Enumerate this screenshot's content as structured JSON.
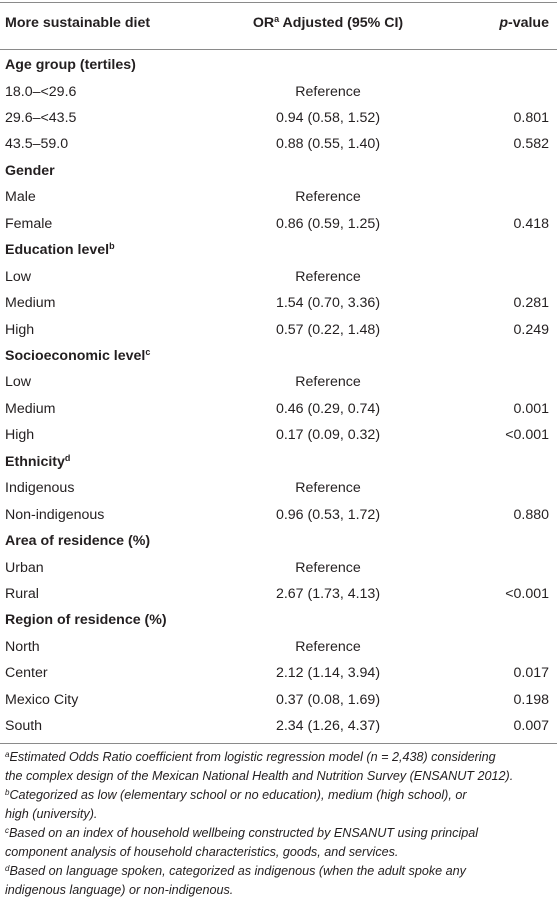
{
  "header": {
    "col1": "More sustainable diet",
    "col2_prefix": "OR",
    "col2_sup": "a",
    "col2_suffix": " Adjusted (95% CI)",
    "col3_italic": "p",
    "col3_rest": "-value"
  },
  "rows": [
    {
      "label": "Age group (tertiles)",
      "sup": "",
      "or": "",
      "p": "",
      "section": true
    },
    {
      "label": "18.0–<29.6",
      "or": "Reference",
      "p": ""
    },
    {
      "label": "29.6–<43.5",
      "or": "0.94 (0.58, 1.52)",
      "p": "0.801"
    },
    {
      "label": "43.5–59.0",
      "or": "0.88 (0.55, 1.40)",
      "p": "0.582"
    },
    {
      "label": "Gender",
      "sup": "",
      "or": "",
      "p": "",
      "section": true
    },
    {
      "label": "Male",
      "or": "Reference",
      "p": ""
    },
    {
      "label": "Female",
      "or": "0.86 (0.59, 1.25)",
      "p": "0.418"
    },
    {
      "label": "Education level",
      "sup": "b",
      "or": "",
      "p": "",
      "section": true
    },
    {
      "label": "Low",
      "or": "Reference",
      "p": ""
    },
    {
      "label": "Medium",
      "or": "1.54 (0.70, 3.36)",
      "p": "0.281"
    },
    {
      "label": "High",
      "or": "0.57 (0.22, 1.48)",
      "p": "0.249"
    },
    {
      "label": "Socioeconomic level",
      "sup": "c",
      "or": "",
      "p": "",
      "section": true
    },
    {
      "label": "Low",
      "or": "Reference",
      "p": ""
    },
    {
      "label": "Medium",
      "or": "0.46 (0.29, 0.74)",
      "p": "0.001"
    },
    {
      "label": "High",
      "or": "0.17 (0.09, 0.32)",
      "p": "<0.001"
    },
    {
      "label": "Ethnicity",
      "sup": "d",
      "or": "",
      "p": "",
      "section": true
    },
    {
      "label": "Indigenous",
      "or": "Reference",
      "p": ""
    },
    {
      "label": "Non-indigenous",
      "or": "0.96 (0.53, 1.72)",
      "p": "0.880"
    },
    {
      "label": "Area of residence (%)",
      "sup": "",
      "or": "",
      "p": "",
      "section": true
    },
    {
      "label": "Urban",
      "or": "Reference",
      "p": ""
    },
    {
      "label": "Rural",
      "or": "2.67 (1.73, 4.13)",
      "p": "<0.001"
    },
    {
      "label": "Region of residence (%)",
      "sup": "",
      "or": "",
      "p": "",
      "section": true
    },
    {
      "label": "North",
      "or": "Reference",
      "p": ""
    },
    {
      "label": "Center",
      "or": "2.12 (1.14, 3.94)",
      "p": "0.017"
    },
    {
      "label": "Mexico City",
      "or": "0.37 (0.08, 1.69)",
      "p": "0.198"
    },
    {
      "label": "South",
      "or": "2.34 (1.26, 4.37)",
      "p": "0.007"
    }
  ],
  "footnotes": [
    {
      "mark": "a",
      "lines": [
        "Estimated Odds Ratio coefficient from logistic regression model (n = 2,438) considering",
        "the complex design of the Mexican National Health and Nutrition Survey (ENSANUT 2012)."
      ]
    },
    {
      "mark": "b",
      "lines": [
        "Categorized as low (elementary school or no education), medium (high school), or",
        "high (university)."
      ]
    },
    {
      "mark": "c",
      "lines": [
        "Based on an index of household wellbeing constructed by ENSANUT using principal",
        "component analysis of household characteristics, goods, and services."
      ]
    },
    {
      "mark": "d",
      "lines": [
        "Based on language spoken, categorized as indigenous (when the adult spoke any",
        "indigenous language) or non-indigenous."
      ]
    }
  ]
}
